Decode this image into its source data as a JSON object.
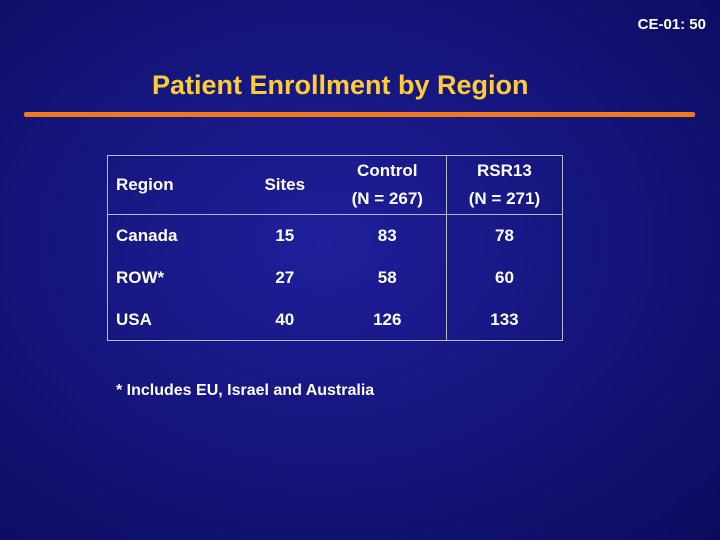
{
  "slide_id": "CE-01: 50",
  "title": "Patient Enrollment by Region",
  "colors": {
    "background": "#161680",
    "title": "#ffcc33",
    "rule": "#f07a1e",
    "text": "#ffffff"
  },
  "table": {
    "headers": {
      "region": "Region",
      "sites": "Sites",
      "control_line1": "Control",
      "control_line2": "(N = 267)",
      "rsr13_line1": "RSR13",
      "rsr13_line2": "(N = 271)"
    },
    "rows": [
      {
        "region": "Canada",
        "sites": "15",
        "control": "83",
        "rsr13": "78"
      },
      {
        "region": "ROW*",
        "sites": "27",
        "control": "58",
        "rsr13": "60"
      },
      {
        "region": "USA",
        "sites": "40",
        "control": "126",
        "rsr13": "133"
      }
    ]
  },
  "footnote": "* Includes EU, Israel and Australia"
}
